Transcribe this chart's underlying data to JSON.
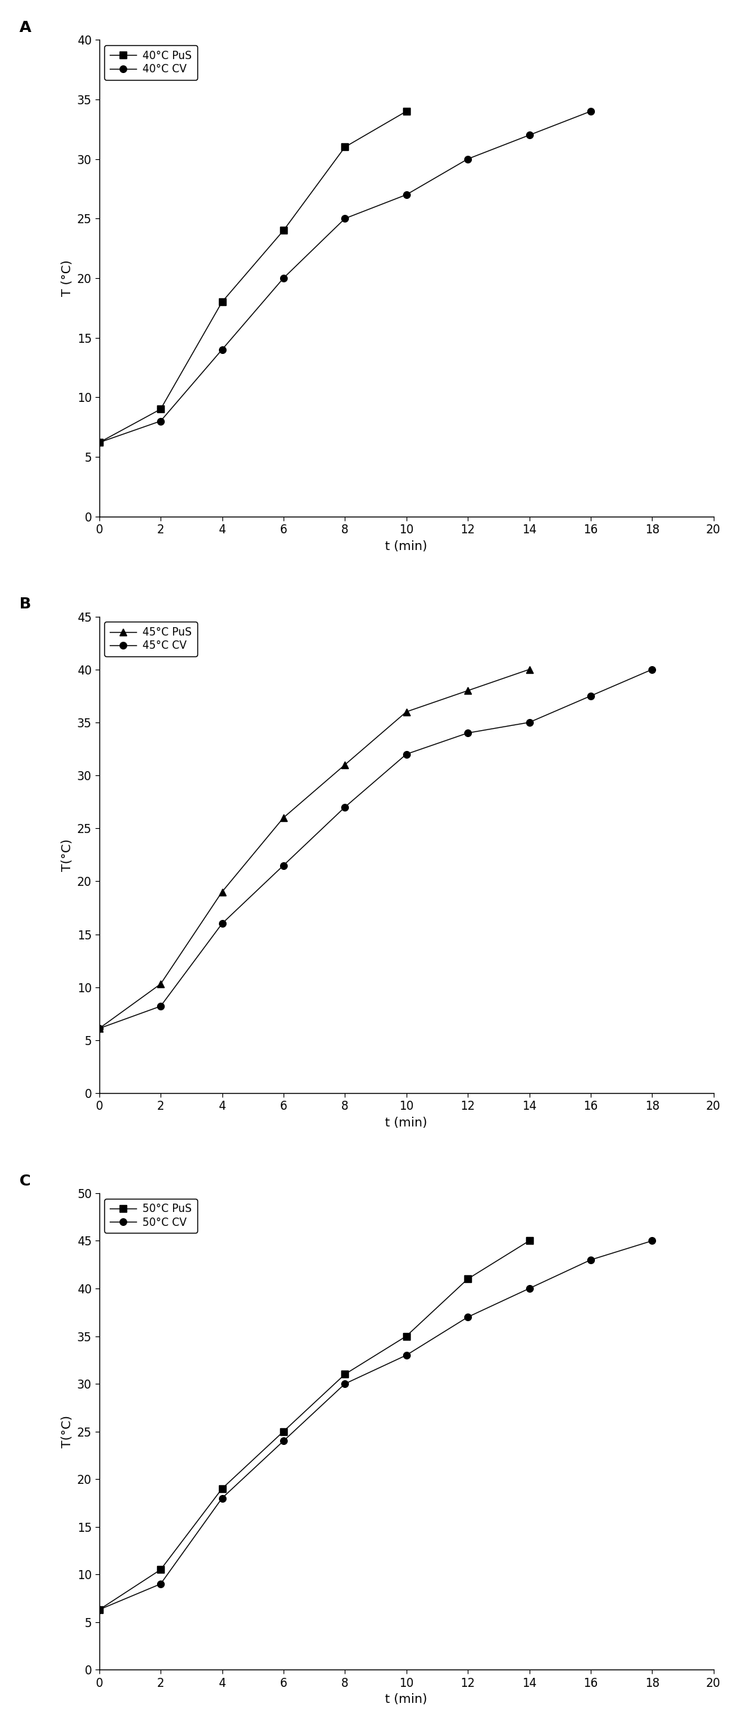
{
  "panels": [
    {
      "label": "A",
      "ylabel": "T (°C)",
      "xlabel": "t (min)",
      "xlim": [
        0,
        20
      ],
      "ylim": [
        0,
        40
      ],
      "yticks": [
        0,
        5,
        10,
        15,
        20,
        25,
        30,
        35,
        40
      ],
      "xticks": [
        0,
        2,
        4,
        6,
        8,
        10,
        12,
        14,
        16,
        18,
        20
      ],
      "series": [
        {
          "label": "40°C PuS",
          "marker": "s",
          "x": [
            0,
            2,
            4,
            6,
            8,
            10
          ],
          "y": [
            6.2,
            9.0,
            18.0,
            24.0,
            31.0,
            34.0
          ]
        },
        {
          "label": "40°C CV",
          "marker": "o",
          "x": [
            0,
            2,
            4,
            6,
            8,
            10,
            12,
            14,
            16
          ],
          "y": [
            6.2,
            8.0,
            14.0,
            20.0,
            25.0,
            27.0,
            30.0,
            32.0,
            34.0
          ]
        }
      ]
    },
    {
      "label": "B",
      "ylabel": "T(°C)",
      "xlabel": "t (min)",
      "xlim": [
        0,
        20
      ],
      "ylim": [
        0,
        45
      ],
      "yticks": [
        0,
        5,
        10,
        15,
        20,
        25,
        30,
        35,
        40,
        45
      ],
      "xticks": [
        0,
        2,
        4,
        6,
        8,
        10,
        12,
        14,
        16,
        18,
        20
      ],
      "series": [
        {
          "label": "45°C PuS",
          "marker": "^",
          "x": [
            0,
            2,
            4,
            6,
            8,
            10,
            12,
            14
          ],
          "y": [
            6.1,
            10.3,
            19.0,
            26.0,
            31.0,
            36.0,
            38.0,
            40.0
          ]
        },
        {
          "label": "45°C CV",
          "marker": "o",
          "x": [
            0,
            2,
            4,
            6,
            8,
            10,
            12,
            14,
            16,
            18
          ],
          "y": [
            6.1,
            8.2,
            16.0,
            21.5,
            27.0,
            32.0,
            34.0,
            35.0,
            37.5,
            40.0
          ]
        }
      ]
    },
    {
      "label": "C",
      "ylabel": "T(°C)",
      "xlabel": "t (min)",
      "xlim": [
        0,
        20
      ],
      "ylim": [
        0,
        50
      ],
      "yticks": [
        0,
        5,
        10,
        15,
        20,
        25,
        30,
        35,
        40,
        45,
        50
      ],
      "xticks": [
        0,
        2,
        4,
        6,
        8,
        10,
        12,
        14,
        16,
        18,
        20
      ],
      "series": [
        {
          "label": "50°C PuS",
          "marker": "s",
          "x": [
            0,
            2,
            4,
            6,
            8,
            10,
            12,
            14
          ],
          "y": [
            6.3,
            10.5,
            19.0,
            25.0,
            31.0,
            35.0,
            41.0,
            45.0
          ]
        },
        {
          "label": "50°C CV",
          "marker": "o",
          "x": [
            0,
            2,
            4,
            6,
            8,
            10,
            12,
            14,
            16,
            18
          ],
          "y": [
            6.3,
            9.0,
            18.0,
            24.0,
            30.0,
            33.0,
            37.0,
            40.0,
            43.0,
            45.0
          ]
        }
      ]
    }
  ],
  "line_color": "#000000",
  "marker_fill": "#000000",
  "marker_size": 7,
  "line_width": 1.0,
  "tick_labelsize": 12,
  "axis_labelsize": 13,
  "legend_fontsize": 11,
  "panel_labelsize": 16,
  "fig_width": 10.72,
  "fig_height": 24.88,
  "dpi": 100
}
